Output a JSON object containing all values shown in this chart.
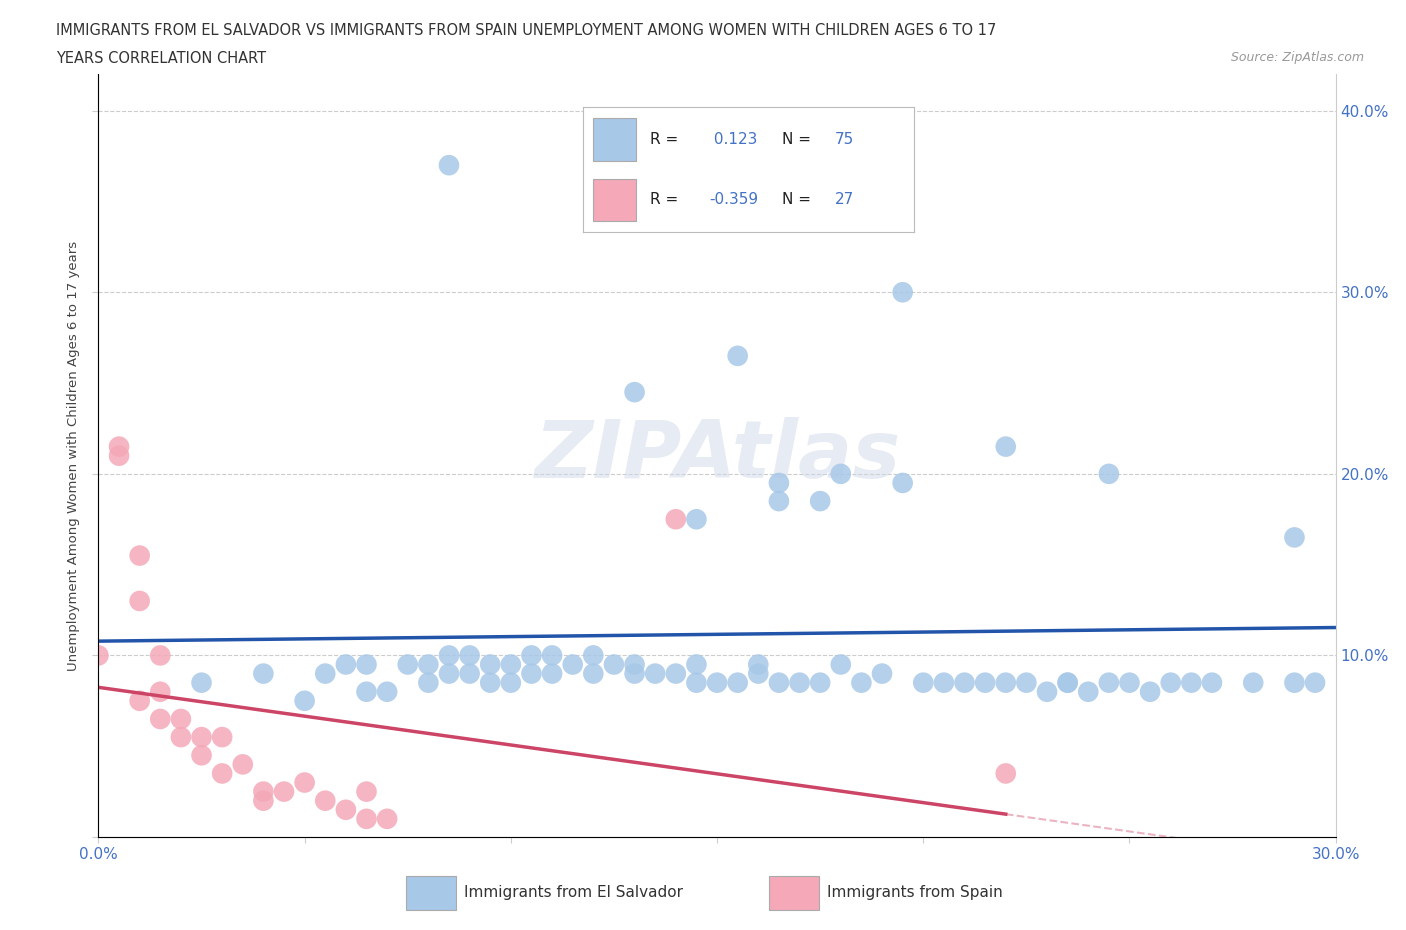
{
  "title_line1": "IMMIGRANTS FROM EL SALVADOR VS IMMIGRANTS FROM SPAIN UNEMPLOYMENT AMONG WOMEN WITH CHILDREN AGES 6 TO 17",
  "title_line2": "YEARS CORRELATION CHART",
  "source": "Source: ZipAtlas.com",
  "ylabel": "Unemployment Among Women with Children Ages 6 to 17 years",
  "xlim": [
    0.0,
    0.3
  ],
  "ylim": [
    0.0,
    0.42
  ],
  "x_ticks": [
    0.0,
    0.05,
    0.1,
    0.15,
    0.2,
    0.25,
    0.3
  ],
  "y_ticks": [
    0.0,
    0.1,
    0.2,
    0.3,
    0.4
  ],
  "el_salvador_color": "#a8c8e8",
  "spain_color": "#f4a8b8",
  "trend_el_salvador_color": "#2255aa",
  "trend_spain_color": "#cc4466",
  "R_el_salvador": 0.123,
  "N_el_salvador": 75,
  "R_spain": -0.359,
  "N_spain": 27,
  "background_color": "#ffffff",
  "grid_color": "#cccccc",
  "watermark": "ZIPAtlas",
  "el_salvador_x": [
    0.025,
    0.04,
    0.05,
    0.06,
    0.055,
    0.065,
    0.065,
    0.07,
    0.075,
    0.08,
    0.08,
    0.085,
    0.085,
    0.09,
    0.09,
    0.095,
    0.095,
    0.1,
    0.1,
    0.105,
    0.105,
    0.11,
    0.11,
    0.115,
    0.12,
    0.12,
    0.125,
    0.13,
    0.13,
    0.135,
    0.14,
    0.145,
    0.145,
    0.15,
    0.155,
    0.16,
    0.16,
    0.165,
    0.17,
    0.175,
    0.18,
    0.185,
    0.19,
    0.2,
    0.205,
    0.21,
    0.215,
    0.22,
    0.225,
    0.23,
    0.235,
    0.235,
    0.24,
    0.245,
    0.25,
    0.255,
    0.26,
    0.265,
    0.27,
    0.28,
    0.29,
    0.295,
    0.13,
    0.18,
    0.22,
    0.29,
    0.085,
    0.155,
    0.195,
    0.245,
    0.195,
    0.145,
    0.165,
    0.175,
    0.165
  ],
  "el_salvador_y": [
    0.085,
    0.09,
    0.075,
    0.095,
    0.09,
    0.08,
    0.095,
    0.08,
    0.095,
    0.095,
    0.085,
    0.09,
    0.1,
    0.09,
    0.1,
    0.085,
    0.095,
    0.085,
    0.095,
    0.09,
    0.1,
    0.09,
    0.1,
    0.095,
    0.09,
    0.1,
    0.095,
    0.09,
    0.095,
    0.09,
    0.09,
    0.085,
    0.095,
    0.085,
    0.085,
    0.09,
    0.095,
    0.085,
    0.085,
    0.085,
    0.095,
    0.085,
    0.09,
    0.085,
    0.085,
    0.085,
    0.085,
    0.085,
    0.085,
    0.08,
    0.085,
    0.085,
    0.08,
    0.085,
    0.085,
    0.08,
    0.085,
    0.085,
    0.085,
    0.085,
    0.085,
    0.085,
    0.245,
    0.2,
    0.215,
    0.165,
    0.37,
    0.265,
    0.3,
    0.2,
    0.195,
    0.175,
    0.195,
    0.185,
    0.185
  ],
  "spain_x": [
    0.0,
    0.005,
    0.005,
    0.01,
    0.01,
    0.015,
    0.015,
    0.015,
    0.02,
    0.02,
    0.025,
    0.025,
    0.03,
    0.03,
    0.035,
    0.04,
    0.04,
    0.045,
    0.05,
    0.055,
    0.06,
    0.065,
    0.065,
    0.07,
    0.14,
    0.22,
    0.01
  ],
  "spain_y": [
    0.1,
    0.215,
    0.21,
    0.155,
    0.075,
    0.1,
    0.08,
    0.065,
    0.065,
    0.055,
    0.055,
    0.045,
    0.055,
    0.035,
    0.04,
    0.025,
    0.02,
    0.025,
    0.03,
    0.02,
    0.015,
    0.025,
    0.01,
    0.01,
    0.175,
    0.035,
    0.13
  ]
}
